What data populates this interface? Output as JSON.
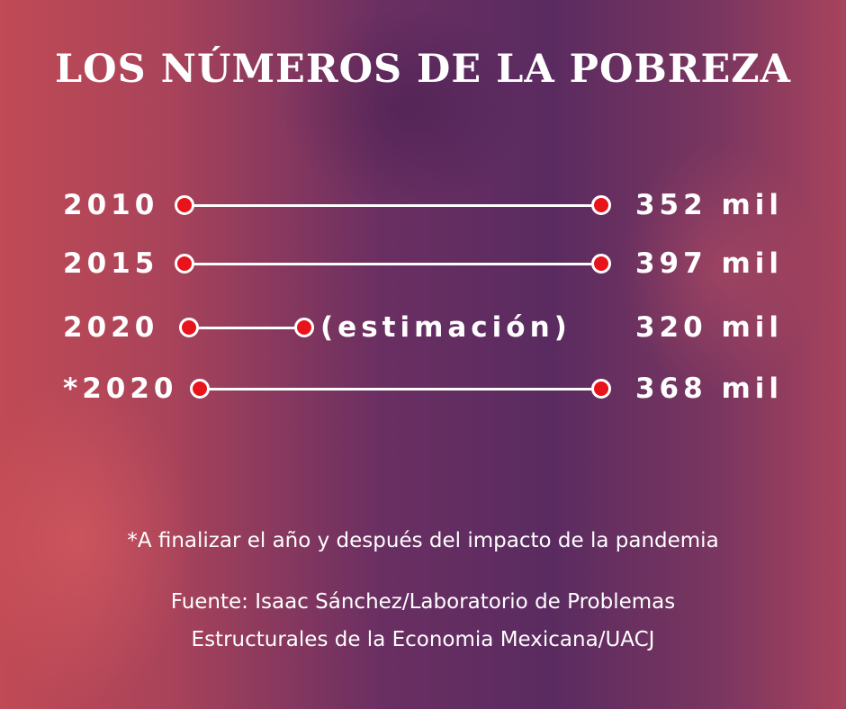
{
  "title": "LOS NÚMEROS DE LA POBREZA",
  "rows": [
    {
      "year": "2010",
      "value": "352 mil"
    },
    {
      "year": "2015",
      "value": "397 mil"
    },
    {
      "year": "2020",
      "note": "(estimación)",
      "value": "320 mil"
    },
    {
      "year": "*2020",
      "value": "368 mil"
    }
  ],
  "footnote": "*A finalizar el año y después del impacto de la pandemia",
  "source_line1": "Fuente: Isaac Sánchez/Laboratorio de Problemas",
  "source_line2": "Estructurales de la Economia Mexicana/UACJ",
  "colors": {
    "dot": "#e8141c",
    "text": "#ffffff"
  }
}
